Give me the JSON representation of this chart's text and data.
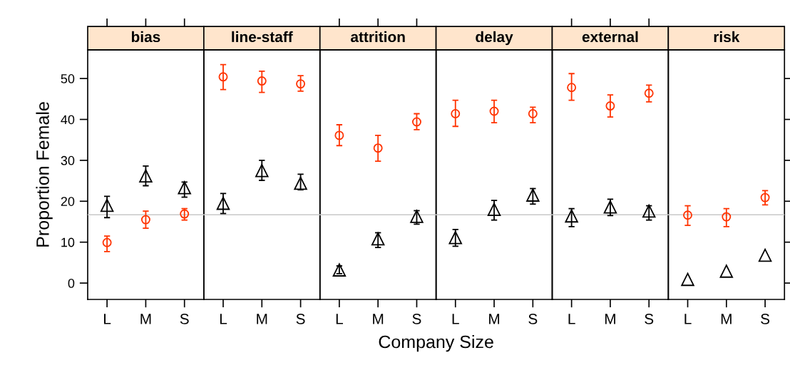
{
  "chart_data": {
    "type": "scatter",
    "ylabel": "Proportion Female",
    "xlabel": "Company Size",
    "annotations": [
      "bias",
      "line-staff",
      "attrition",
      "delay",
      "external",
      "risk"
    ],
    "categories": [
      "L",
      "M",
      "S",
      "L",
      "M",
      "S",
      "L",
      "M",
      "S",
      "L",
      "M",
      "S",
      "L",
      "M",
      "S",
      "L",
      "M",
      "S"
    ],
    "ylim": [
      -4,
      57
    ],
    "yticks": [
      0,
      10,
      20,
      30,
      40,
      50
    ],
    "grid": false,
    "ref_lines": [
      {
        "axis": "y",
        "value": 16.7,
        "color": "#c8c8c8"
      }
    ],
    "series": [
      {
        "color": "#ff3300",
        "marker": "circle",
        "values": [
          9.9,
          15.5,
          16.9,
          50.4,
          49.4,
          48.7,
          36.1,
          33.0,
          39.4,
          41.4,
          42.0,
          41.4,
          47.8,
          43.3,
          46.4,
          16.6,
          16.2,
          20.9
        ],
        "errors": [
          [
            7.7,
            11.5
          ],
          [
            13.4,
            17.6
          ],
          [
            15.4,
            18.2
          ],
          [
            47.3,
            53.4
          ],
          [
            46.6,
            51.8
          ],
          [
            46.9,
            50.7
          ],
          [
            33.6,
            38.7
          ],
          [
            29.8,
            36.1
          ],
          [
            37.5,
            41.4
          ],
          [
            38.3,
            44.7
          ],
          [
            39.2,
            44.7
          ],
          [
            39.2,
            43.0
          ],
          [
            44.7,
            51.2
          ],
          [
            40.6,
            46.0
          ],
          [
            44.3,
            48.4
          ],
          [
            14.1,
            18.9
          ],
          [
            13.8,
            18.2
          ],
          [
            19.1,
            22.6
          ]
        ]
      },
      {
        "color": "#000000",
        "marker": "triangle",
        "values": [
          19.0,
          26.2,
          23.3,
          19.5,
          27.5,
          24.4,
          3.2,
          10.8,
          16.3,
          11.1,
          18.0,
          21.5,
          16.4,
          18.6,
          17.6,
          0.9,
          2.9,
          6.8
        ],
        "errors": [
          [
            16.0,
            21.2
          ],
          [
            23.8,
            28.6
          ],
          [
            21.0,
            24.7
          ],
          [
            17.0,
            21.9
          ],
          [
            25.1,
            30.0
          ],
          [
            22.8,
            26.6
          ],
          [
            2.3,
            4.2
          ],
          [
            8.7,
            12.3
          ],
          [
            14.4,
            17.7
          ],
          [
            9.0,
            13.1
          ],
          [
            15.4,
            20.2
          ],
          [
            19.3,
            23.1
          ],
          [
            13.8,
            18.2
          ],
          [
            16.5,
            20.5
          ],
          [
            15.4,
            18.9
          ],
          null,
          null,
          null
        ]
      }
    ]
  }
}
